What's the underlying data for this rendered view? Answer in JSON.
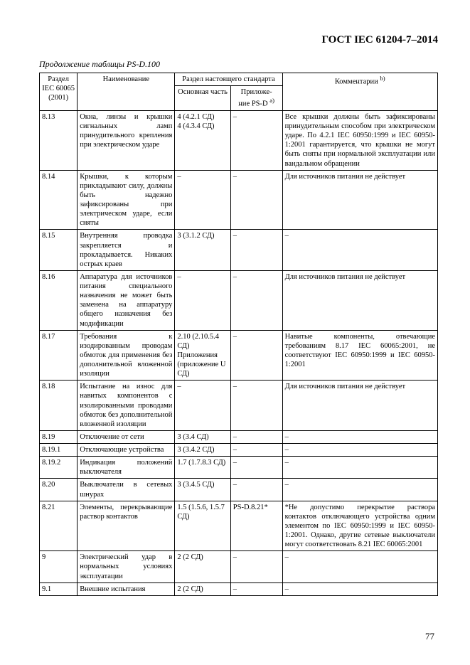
{
  "doc": {
    "title": "ГОСТ IEC 61204-7–2014",
    "continuation": "Продолжение таблицы PS-D.100",
    "page": "77"
  },
  "header": {
    "col1_line1": "Раздел",
    "col1_line2": "IEC 60065",
    "col1_line3": "(2001)",
    "col2": "Наименование",
    "col34_group": "Раздел настоящего стандарта",
    "col3": "Основная часть",
    "col4_line1": "Приложе-",
    "col4_line2_pre": "ние PS-D ",
    "col4_line2_sup": "а)",
    "col5_pre": "Комментарии ",
    "col5_sup": "b)"
  },
  "rows": [
    {
      "r": "8.13",
      "name": "Окна, линзы и крышки сигнальных ламп принудительного крепления при электрическом ударе",
      "main": "4 (4.2.1 СД)\n4 (4.3.4 СД)",
      "app": "–",
      "comm": "Все крышки должны быть зафиксированы принудительным способом при электрическом ударе. По 4.2.1 IEC 60950:1999 и IEC 60950-1:2001 гарантируется, что крышки не могут быть сняты при нормальной эксплуатации или вандальном обращении"
    },
    {
      "r": "8.14",
      "name": "Крышки, к которым прикладывают силу, должны быть надежно зафиксированы при электрическом ударе, если сняты",
      "main": "–",
      "app": "–",
      "comm": "Для источников питания не действует"
    },
    {
      "r": "8.15",
      "name": "Внутренняя проводка закрепляется и прокладывается. Никаких острых краев",
      "main": "3 (3.1.2 СД)",
      "app": "–",
      "comm": "–"
    },
    {
      "r": "8.16",
      "name": "Аппаратура для источников питания специального назначения не может быть заменена на аппаратуру общего назначения без модификации",
      "main": "–",
      "app": "–",
      "comm": "Для источников питания не действует"
    },
    {
      "r": "8.17",
      "name": "Требования к изодированным проводам обмоток для применения без дополнительной вложенной изоляции",
      "main": "2.10 (2.10.5.4 СД)\nПриложения (приложение U СД)",
      "app": "–",
      "comm": "Навитые компоненты, отвечающие требованиям 8.17 IEC 60065:2001, не соответствуют IEC 60950:1999 и IEC 60950-1:2001"
    },
    {
      "r": "8.18",
      "name": "Испытание на износ для навитых компонентов с изолированными проводами обмоток без дополнительной вложенной изоляции",
      "main": "–",
      "app": "–",
      "comm": "Для источников питания не действует"
    },
    {
      "r": "8.19",
      "name": "Отключение от сети",
      "main": "3 (3.4 СД)",
      "app": "–",
      "comm": "–"
    },
    {
      "r": "8.19.1",
      "name": "Отключающие устройства",
      "main": "3 (3.4.2 СД)",
      "app": "–",
      "comm": "–"
    },
    {
      "r": "8.19.2",
      "name": "Индикация положений выключателя",
      "main": "1.7 (1.7.8.3 СД)",
      "app": "–",
      "comm": "–"
    },
    {
      "r": "8.20",
      "name": "Выключатели в сетевых шнурах",
      "main": "3 (3.4.5 СД)",
      "app": "–",
      "comm": "–"
    },
    {
      "r": "8.21",
      "name": "Элементы, перекрывающие раствор контактов",
      "main": "1.5 (1.5.6, 1.5.7 СД)",
      "app": "PS-D.8.21*",
      "comm": "*Не допустимо перекрытие раствора контактов отключающего устройства одним элементом по IEC 60950:1999 и IEC 60950-1:2001. Однако, другие сетевые выключатели могут соответствовать 8.21 IEC 60065:2001"
    },
    {
      "r": "9",
      "name": "Электрический удар в нормальных условиях эксплуатации",
      "main": "2 (2 СД)",
      "app": "–",
      "comm": "–"
    },
    {
      "r": "9.1",
      "name": "Внешние испытания",
      "main": "2 (2 СД)",
      "app": "–",
      "comm": "–"
    }
  ]
}
